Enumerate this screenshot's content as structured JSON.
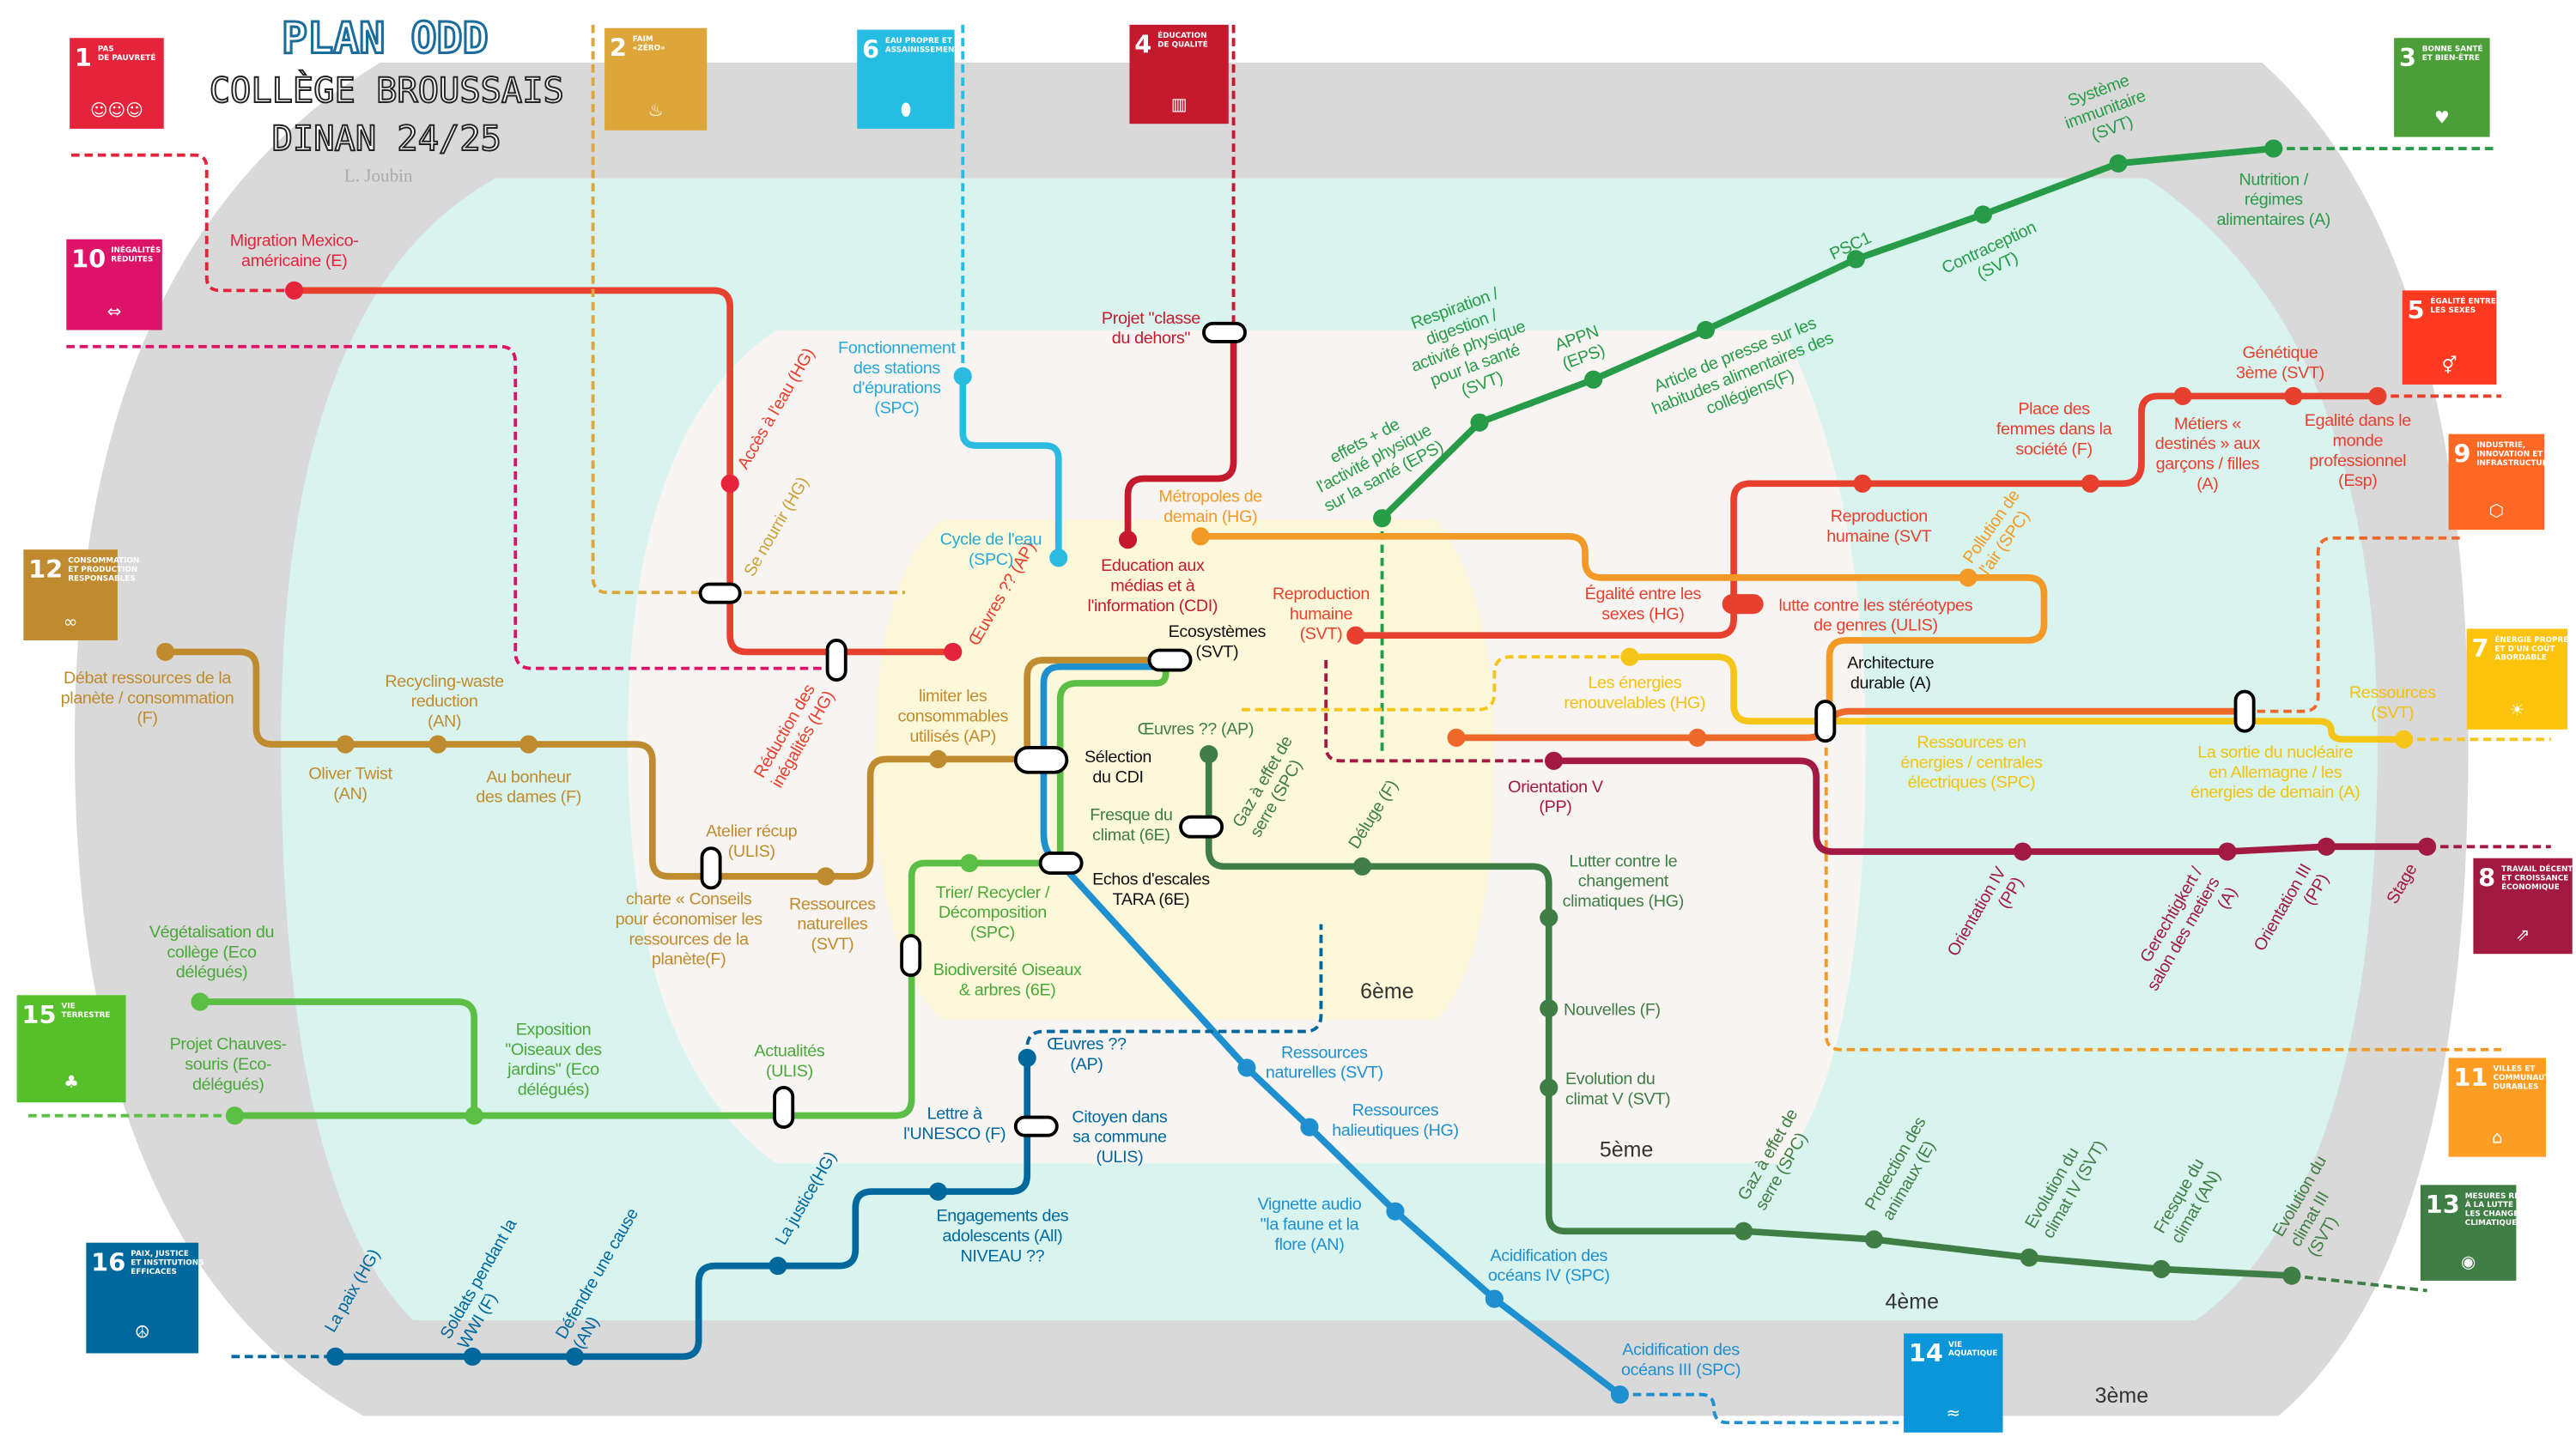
{
  "header": {
    "title": "PLAN ODD",
    "school": "COLLÈGE BROUSSAIS",
    "place_year": "DINAN 24/25",
    "author": "L. Joubin"
  },
  "levels": {
    "l6": "6ème",
    "l5": "5ème",
    "l4": "4ème",
    "l3": "3ème"
  },
  "sdg": {
    "b1": {
      "num": "1",
      "title": [
        "PAS",
        "DE PAUVRETÉ"
      ],
      "color": "#e5243b",
      "icon": "family-icon"
    },
    "b2": {
      "num": "2",
      "title": [
        "FAIM",
        "«ZÉRO»"
      ],
      "color": "#dda63a",
      "icon": "bowl-icon"
    },
    "b3": {
      "num": "3",
      "title": [
        "BONNE SANTÉ",
        "ET BIEN-ÊTRE"
      ],
      "color": "#4c9f38",
      "icon": "heartbeat-icon"
    },
    "b4": {
      "num": "4",
      "title": [
        "ÉDUCATION",
        "DE QUALITÉ"
      ],
      "color": "#c5192d",
      "icon": "book-icon"
    },
    "b5": {
      "num": "5",
      "title": [
        "ÉGALITÉ ENTRE",
        "LES SEXES"
      ],
      "color": "#ff3a21",
      "icon": "gender-equality-icon"
    },
    "b6": {
      "num": "6",
      "title": [
        "EAU PROPRE ET",
        "ASSAINISSEMENT"
      ],
      "color": "#26bde2",
      "icon": "water-drop-icon"
    },
    "b7": {
      "num": "7",
      "title": [
        "ÉNERGIE PROPRE",
        "ET D'UN COÛT",
        "ABORDABLE"
      ],
      "color": "#fcc30b",
      "icon": "sun-power-icon"
    },
    "b8": {
      "num": "8",
      "title": [
        "TRAVAIL DÉCENT",
        "ET CROISSANCE",
        "ÉCONOMIQUE"
      ],
      "color": "#a21942",
      "icon": "growth-chart-icon"
    },
    "b9": {
      "num": "9",
      "title": [
        "INDUSTRIE,",
        "INNOVATION ET",
        "INFRASTRUCTURE"
      ],
      "color": "#fd6925",
      "icon": "cubes-icon"
    },
    "b10": {
      "num": "10",
      "title": [
        "INÉGALITÉS",
        "RÉDUITES"
      ],
      "color": "#dd1367",
      "icon": "equal-arrows-icon"
    },
    "b11": {
      "num": "11",
      "title": [
        "VILLES ET",
        "COMMUNAUTÉS",
        "DURABLES"
      ],
      "color": "#fd9d24",
      "icon": "buildings-icon"
    },
    "b12": {
      "num": "12",
      "title": [
        "CONSOMMATION",
        "ET PRODUCTION",
        "RESPONSABLES"
      ],
      "color": "#bf8b2e",
      "icon": "infinity-icon"
    },
    "b13": {
      "num": "13",
      "title": [
        "MESURES RELATIVES",
        "À LA LUTTE CONTRE",
        "LES CHANGEMENTS",
        "CLIMATIQUES"
      ],
      "color": "#3f7e44",
      "icon": "earth-eye-icon"
    },
    "b14": {
      "num": "14",
      "title": [
        "VIE",
        "AQUATIQUE"
      ],
      "color": "#0a97d9",
      "icon": "fish-icon"
    },
    "b15": {
      "num": "15",
      "title": [
        "VIE",
        "TERRESTRE"
      ],
      "color": "#56c02b",
      "icon": "tree-icon"
    },
    "b16": {
      "num": "16",
      "title": [
        "PAIX, JUSTICE",
        "ET INSTITUTIONS",
        "EFFICACES"
      ],
      "color": "#00689d",
      "icon": "dove-icon"
    }
  },
  "stations": {
    "migration": [
      "Migration Mexico-",
      "américaine (E)"
    ],
    "acces_eau": [
      "Accès à l'eau (HG)"
    ],
    "se_nourrir": [
      "Se nourrir (HG)"
    ],
    "reduction": [
      "Réduction des",
      "inégalités (HG)"
    ],
    "oeuvres_red": [
      "Œuvres ?? (AP)"
    ],
    "fonctionnement": [
      "Fonctionnement",
      "des stations",
      "d'épurations",
      "(SPC)"
    ],
    "cycle_eau": [
      "Cycle de l'eau",
      "(SPC)"
    ],
    "projet": [
      "Projet \"classe",
      "du dehors\""
    ],
    "education": [
      "Education aux",
      "médias et à",
      "l'information (CDI)"
    ],
    "metropoles": [
      "Métropoles de",
      "demain (HG)"
    ],
    "pollution": [
      "Pollution de",
      "l'air (SPC)"
    ],
    "architecture": [
      "Architecture",
      "durable (A)"
    ],
    "effets": [
      "effets + de",
      "l'activité physique",
      "sur la santé (EPS)"
    ],
    "respiration": [
      "Respiration /",
      "digestion /",
      "activité physique",
      "pour la santé",
      "(SVT)"
    ],
    "appn": [
      "APPN",
      "(EPS)"
    ],
    "article": [
      "Article de presse sur les",
      "habitudes alimentaires des",
      "collégiens(F)"
    ],
    "psc1": [
      "PSC1"
    ],
    "contraception": [
      "Contraception",
      "(SVT)"
    ],
    "systeme": [
      "Système",
      "immunitaire",
      "(SVT)"
    ],
    "nutrition": [
      "Nutrition /",
      "régimes",
      "alimentaires (A)"
    ],
    "repro1": [
      "Reproduction",
      "humaine",
      "(SVT)"
    ],
    "egalite_sexes": [
      "Égalité entre les",
      "sexes (HG)"
    ],
    "lutte": [
      "lutte contre les stéréotypes",
      "de genres (ULIS)"
    ],
    "repro2": [
      "Reproduction",
      "humaine (SVT"
    ],
    "place_femmes": [
      "Place des",
      "femmes dans la",
      "société (F)"
    ],
    "metiers": [
      "Métiers «",
      "destinés » aux",
      "garçons / filles",
      "(A)"
    ],
    "genetique": [
      "Génétique",
      "3ème (SVT)"
    ],
    "egalite_monde": [
      "Egalité dans le",
      "monde",
      "professionnel",
      "(Esp)"
    ],
    "energies_renouv": [
      "Les énergies",
      "renouvelables (HG)"
    ],
    "ressources_energies": [
      "Ressources en",
      "énergies / centrales",
      "électriques (SPC)"
    ],
    "sortie": [
      "La sortie du nucléaire",
      "en Allemagne / les",
      "énergies de demain (A)"
    ],
    "ressources_svt": [
      "Ressources",
      "(SVT)"
    ],
    "orientation_v": [
      "Orientation V",
      "(PP)"
    ],
    "orientation_iv": [
      "Orientation IV",
      "(PP)"
    ],
    "gerechtigkeit": [
      "Gerechtigkert /",
      "salon des metiers",
      "(A)"
    ],
    "orientation_iii": [
      "Orientation III",
      "(PP)"
    ],
    "stage": [
      "Stage"
    ],
    "debat": [
      "Débat ressources de la",
      "planète / consommation",
      "(F)"
    ],
    "recycling": [
      "Recycling-waste",
      "reduction",
      "(AN)"
    ],
    "oliver": [
      "Oliver Twist",
      "(AN)"
    ],
    "bonheur": [
      "Au bonheur",
      "des dames (F)"
    ],
    "atelier": [
      "Atelier récup",
      "(ULIS)"
    ],
    "charte": [
      "charte « Conseils",
      "pour économiser les",
      "ressources de la",
      "planète(F)"
    ],
    "ress_nat": [
      "Ressources",
      "naturelles",
      "(SVT)"
    ],
    "limiter": [
      "limiter les",
      "consommables",
      "utilisés (AP)"
    ],
    "ecosystemes": [
      "Ecosystèmes",
      "(SVT)"
    ],
    "selection": [
      "Sélection",
      "du CDI"
    ],
    "echos": [
      "Echos d'escales",
      "TARA (6E)"
    ],
    "ress_nat2": [
      "Ressources",
      "naturelles (SVT)"
    ],
    "halieutiques": [
      "Ressources",
      "halieutiques (HG)"
    ],
    "vignette": [
      "Vignette audio",
      "\"la faune et la",
      "flore (AN)"
    ],
    "acid_iv": [
      "Acidification des",
      "océans IV (SPC)"
    ],
    "acid_iii": [
      "Acidification des",
      "océans III (SPC)"
    ],
    "vegetalisation": [
      "Végétalisation du",
      "collège (Eco",
      "délégués)"
    ],
    "chauves": [
      "Projet Chauves-",
      "souris (Eco-",
      "délégués)"
    ],
    "exposition": [
      "Exposition",
      "\"Oiseaux des",
      "jardins\" (Eco",
      "délégués)"
    ],
    "actualites": [
      "Actualités",
      "(ULIS)"
    ],
    "trier": [
      "Trier/ Recycler /",
      "Décomposition",
      "(SPC)"
    ],
    "biodiversite": [
      "Biodiversité Oiseaux",
      "& arbres (6E)"
    ],
    "lettre": [
      "Lettre à",
      "l'UNESCO (F)"
    ],
    "oeuvres_dg": [
      "Œuvres ?? (AP)"
    ],
    "gaz6": [
      "Gaz à effet de",
      "serre (SPC)"
    ],
    "fresque6": [
      "Fresque du",
      "climat (6E)"
    ],
    "deluge": [
      "Déluge (F)"
    ],
    "lutter": [
      "Lutter contre le",
      "changement",
      "climatiques (HG)"
    ],
    "nouvelles": [
      "Nouvelles (F)"
    ],
    "evol_v": [
      "Evolution du",
      "climat V (SVT)"
    ],
    "gaz4": [
      "Gaz à effet de",
      "serre (SPC)"
    ],
    "protection": [
      "Protection des",
      "animaux (E)"
    ],
    "evol_iv": [
      "Evolution du",
      "climat IV (SVT)"
    ],
    "fresque4": [
      "Fresque du",
      "climat (AN)"
    ],
    "evol_iii": [
      "Evolution du",
      "climat III",
      "(SVT)"
    ],
    "paix": [
      "La paix (HG)"
    ],
    "soldats": [
      "Soldats pendant la",
      "WWI (F)"
    ],
    "defendre": [
      "Défendre une cause",
      "(AN)"
    ],
    "justice": [
      "La justice(HG)"
    ],
    "engagements": [
      "Engagements des",
      "adolescents (All)",
      "NIVEAU ??"
    ],
    "citoyen": [
      "Citoyen dans",
      "sa commune",
      "(ULIS)"
    ],
    "oeuvres_navy": [
      "Œuvres ??",
      "(AP)"
    ]
  }
}
